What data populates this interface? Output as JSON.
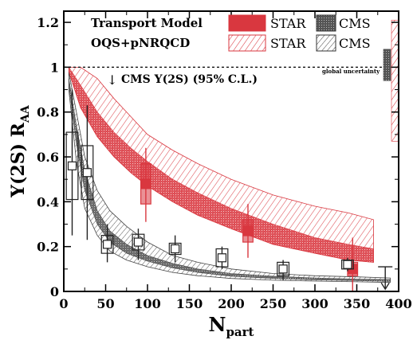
{
  "chart_data": {
    "type": "scatter",
    "title": "",
    "xlabel": "N",
    "xlabel_sub": "part",
    "ylabel": "Υ(2S) R",
    "ylabel_sub": "AA",
    "xlim": [
      0,
      400
    ],
    "ylim": [
      0,
      1.25
    ],
    "xticks": [
      "0",
      "50",
      "100",
      "150",
      "200",
      "250",
      "300",
      "350",
      "400"
    ],
    "yticks": [
      "0",
      "0.2",
      "0.4",
      "0.6",
      "0.8",
      "1",
      "1.2"
    ],
    "xtick_values": [
      0,
      50,
      100,
      150,
      200,
      250,
      300,
      350,
      400
    ],
    "ytick_values": [
      0,
      0.2,
      0.4,
      0.6,
      0.8,
      1.0,
      1.2
    ],
    "grid": false,
    "legend_position": "top",
    "colors": {
      "star": "#d9373f",
      "cms": "#444444",
      "dash": "#000000"
    },
    "annotations": {
      "model_line1": "Transport Model",
      "model_line2": "OQS+pNRQCD",
      "legend_star": "STAR",
      "legend_cms": "CMS",
      "limit_label": "CMS  Υ(2S) (95% C.L.)",
      "limit_arrow": "↓",
      "global_uncertainty": "global uncertainty"
    },
    "unity_line": 1.0,
    "bands": [
      {
        "name": "STAR",
        "style": "solid",
        "x": [
          6,
          20,
          40,
          60,
          80,
          100,
          130,
          160,
          200,
          250,
          300,
          340,
          370
        ],
        "upper": [
          1.0,
          0.92,
          0.8,
          0.71,
          0.64,
          0.58,
          0.5,
          0.44,
          0.37,
          0.3,
          0.24,
          0.21,
          0.19
        ],
        "lower": [
          0.98,
          0.82,
          0.69,
          0.6,
          0.53,
          0.47,
          0.4,
          0.34,
          0.28,
          0.21,
          0.17,
          0.14,
          0.13
        ]
      },
      {
        "name": "STAR",
        "style": "hatched",
        "x": [
          6,
          20,
          40,
          60,
          80,
          100,
          130,
          160,
          200,
          250,
          300,
          340,
          370
        ],
        "upper": [
          1.0,
          1.0,
          0.95,
          0.86,
          0.78,
          0.7,
          0.63,
          0.57,
          0.5,
          0.43,
          0.38,
          0.35,
          0.32
        ],
        "lower": [
          0.98,
          0.82,
          0.69,
          0.6,
          0.53,
          0.47,
          0.4,
          0.34,
          0.28,
          0.21,
          0.17,
          0.14,
          0.13
        ]
      },
      {
        "name": "CMS",
        "style": "solid",
        "x": [
          6,
          15,
          25,
          40,
          55,
          75,
          100,
          130,
          160,
          200,
          250,
          300,
          350,
          390
        ],
        "upper": [
          0.95,
          0.74,
          0.54,
          0.36,
          0.27,
          0.21,
          0.16,
          0.125,
          0.1,
          0.08,
          0.068,
          0.06,
          0.055,
          0.053
        ],
        "lower": [
          0.92,
          0.66,
          0.45,
          0.3,
          0.22,
          0.17,
          0.135,
          0.105,
          0.085,
          0.068,
          0.058,
          0.052,
          0.048,
          0.045
        ]
      },
      {
        "name": "CMS",
        "style": "hatched",
        "x": [
          6,
          15,
          25,
          40,
          55,
          75,
          100,
          130,
          160,
          200,
          250,
          300,
          350,
          390
        ],
        "upper": [
          0.98,
          0.8,
          0.6,
          0.45,
          0.36,
          0.29,
          0.22,
          0.16,
          0.13,
          0.1,
          0.08,
          0.07,
          0.065,
          0.06
        ],
        "lower": [
          0.9,
          0.58,
          0.37,
          0.25,
          0.18,
          0.14,
          0.11,
          0.085,
          0.07,
          0.058,
          0.05,
          0.046,
          0.043,
          0.04
        ]
      }
    ],
    "series": [
      {
        "name": "STAR",
        "x": [
          98,
          220,
          345
        ],
        "y": [
          0.48,
          0.27,
          0.1
        ],
        "yerr_low": [
          0.17,
          0.12,
          0.1
        ],
        "yerr_high": [
          0.16,
          0.12,
          0.14
        ],
        "syst_half_height": [
          0.09,
          0.05,
          0.03
        ],
        "syst_half_width": [
          6,
          6,
          6
        ]
      },
      {
        "name": "CMS",
        "x": [
          10,
          28,
          52,
          89,
          133,
          189,
          262,
          339
        ],
        "y": [
          0.56,
          0.53,
          0.21,
          0.22,
          0.19,
          0.15,
          0.1,
          0.12
        ],
        "yerr_low": [
          0.31,
          0.3,
          0.08,
          0.08,
          0.06,
          0.05,
          0.05,
          0.03
        ],
        "yerr_high": [
          0.34,
          0.3,
          0.09,
          0.06,
          0.06,
          0.05,
          0.04,
          0.03
        ],
        "syst_half_height": [
          0.15,
          0.12,
          0.04,
          0.035,
          0.025,
          0.04,
          0.03,
          0.02
        ],
        "syst_half_width": [
          7,
          7,
          7,
          7,
          7,
          7,
          7,
          7
        ]
      }
    ],
    "upper_limit": {
      "name": "CMS Υ(2S) 95% C.L.",
      "x": 384,
      "y": 0.11
    },
    "global_uncertainty": [
      {
        "name": "CMS",
        "center": 1.0,
        "low": 0.94,
        "high": 1.08
      },
      {
        "name": "STAR",
        "center": 1.0,
        "low": 0.67,
        "high": 1.21
      }
    ]
  }
}
